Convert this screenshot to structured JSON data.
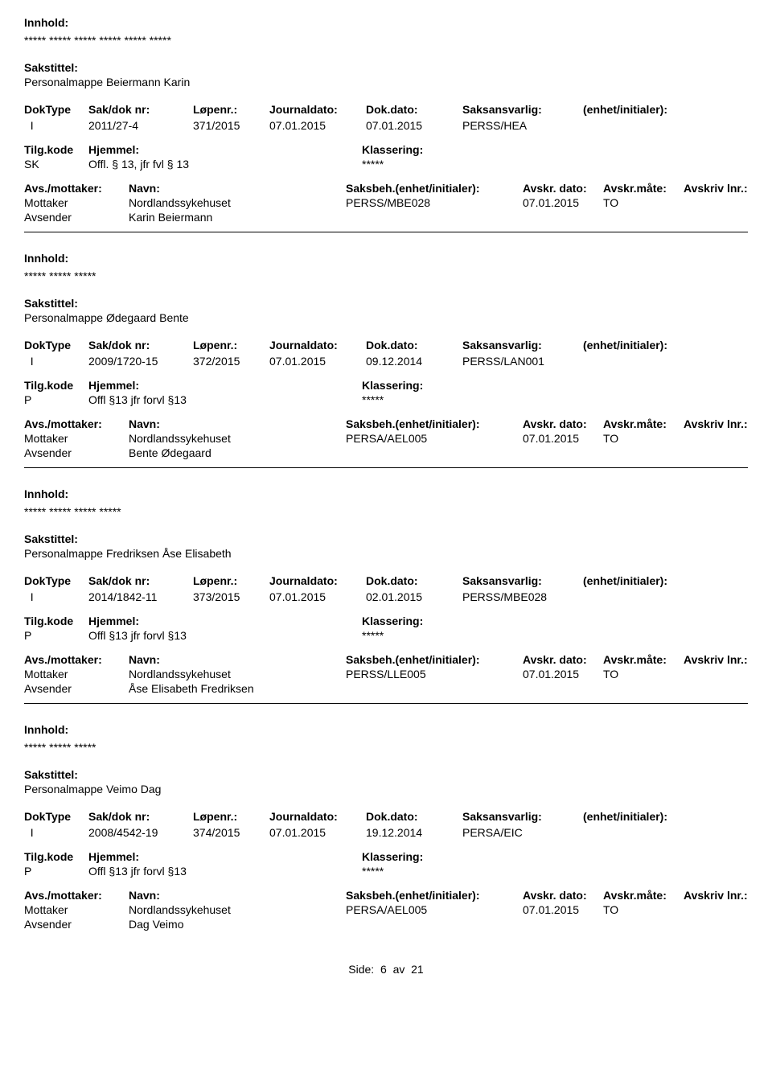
{
  "labels": {
    "innhold": "Innhold:",
    "sakstittel": "Sakstittel:",
    "doktype": "DokType",
    "sakdoknr": "Sak/dok nr:",
    "lopenr": "Løpenr.:",
    "journaldato": "Journaldato:",
    "dokdato": "Dok.dato:",
    "saksansvarlig": "Saksansvarlig:",
    "enhet": "(enhet/initialer):",
    "tilgkode": "Tilg.kode",
    "hjemmel": "Hjemmel:",
    "klassering": "Klassering:",
    "avsmottaker": "Avs./mottaker:",
    "navn": "Navn:",
    "saksbeh": "Saksbeh.(enhet/initialer):",
    "avskrdato": "Avskr. dato:",
    "avskrmate": "Avskr.måte:",
    "avskrivlnr": "Avskriv lnr.:",
    "mottaker": "Mottaker",
    "avsender": "Avsender"
  },
  "records": [
    {
      "innhold": "***** ***** ***** ***** ***** *****",
      "sakstittel": "Personalmappe Beiermann Karin",
      "doktype": "I",
      "sakdoknr": "2011/27-4",
      "lopenr": "371/2015",
      "journaldato": "07.01.2015",
      "dokdato": "07.01.2015",
      "saksansvarlig": "PERSS/HEA",
      "tilgkode": "SK",
      "hjemmel": "Offl. § 13, jfr fvl § 13",
      "klassering": "*****",
      "mottaker_navn": "Nordlandssykehuset",
      "saksbeh": "PERSS/MBE028",
      "avskrdato": "07.01.2015",
      "avskrmate": "TO",
      "avsender_navn": "Karin Beiermann"
    },
    {
      "innhold": "***** ***** *****",
      "sakstittel": "Personalmappe Ødegaard Bente",
      "doktype": "I",
      "sakdoknr": "2009/1720-15",
      "lopenr": "372/2015",
      "journaldato": "07.01.2015",
      "dokdato": "09.12.2014",
      "saksansvarlig": "PERSS/LAN001",
      "tilgkode": "P",
      "hjemmel": "Offl §13 jfr forvl §13",
      "klassering": "*****",
      "mottaker_navn": "Nordlandssykehuset",
      "saksbeh": "PERSA/AEL005",
      "avskrdato": "07.01.2015",
      "avskrmate": "TO",
      "avsender_navn": "Bente Ødegaard"
    },
    {
      "innhold": "***** ***** ***** *****",
      "sakstittel": "Personalmappe Fredriksen Åse Elisabeth",
      "doktype": "I",
      "sakdoknr": "2014/1842-11",
      "lopenr": "373/2015",
      "journaldato": "07.01.2015",
      "dokdato": "02.01.2015",
      "saksansvarlig": "PERSS/MBE028",
      "tilgkode": "P",
      "hjemmel": "Offl §13 jfr forvl §13",
      "klassering": "*****",
      "mottaker_navn": "Nordlandssykehuset",
      "saksbeh": "PERSS/LLE005",
      "avskrdato": "07.01.2015",
      "avskrmate": "TO",
      "avsender_navn": "Åse Elisabeth Fredriksen"
    },
    {
      "innhold": "***** ***** *****",
      "sakstittel": "Personalmappe Veimo Dag",
      "doktype": "I",
      "sakdoknr": "2008/4542-19",
      "lopenr": "374/2015",
      "journaldato": "07.01.2015",
      "dokdato": "19.12.2014",
      "saksansvarlig": "PERSA/EIC",
      "tilgkode": "P",
      "hjemmel": "Offl §13 jfr forvl §13",
      "klassering": "*****",
      "mottaker_navn": "Nordlandssykehuset",
      "saksbeh": "PERSA/AEL005",
      "avskrdato": "07.01.2015",
      "avskrmate": "TO",
      "avsender_navn": "Dag Veimo"
    }
  ],
  "footer": {
    "side_label": "Side:",
    "page": "6",
    "av": "av",
    "total": "21"
  }
}
